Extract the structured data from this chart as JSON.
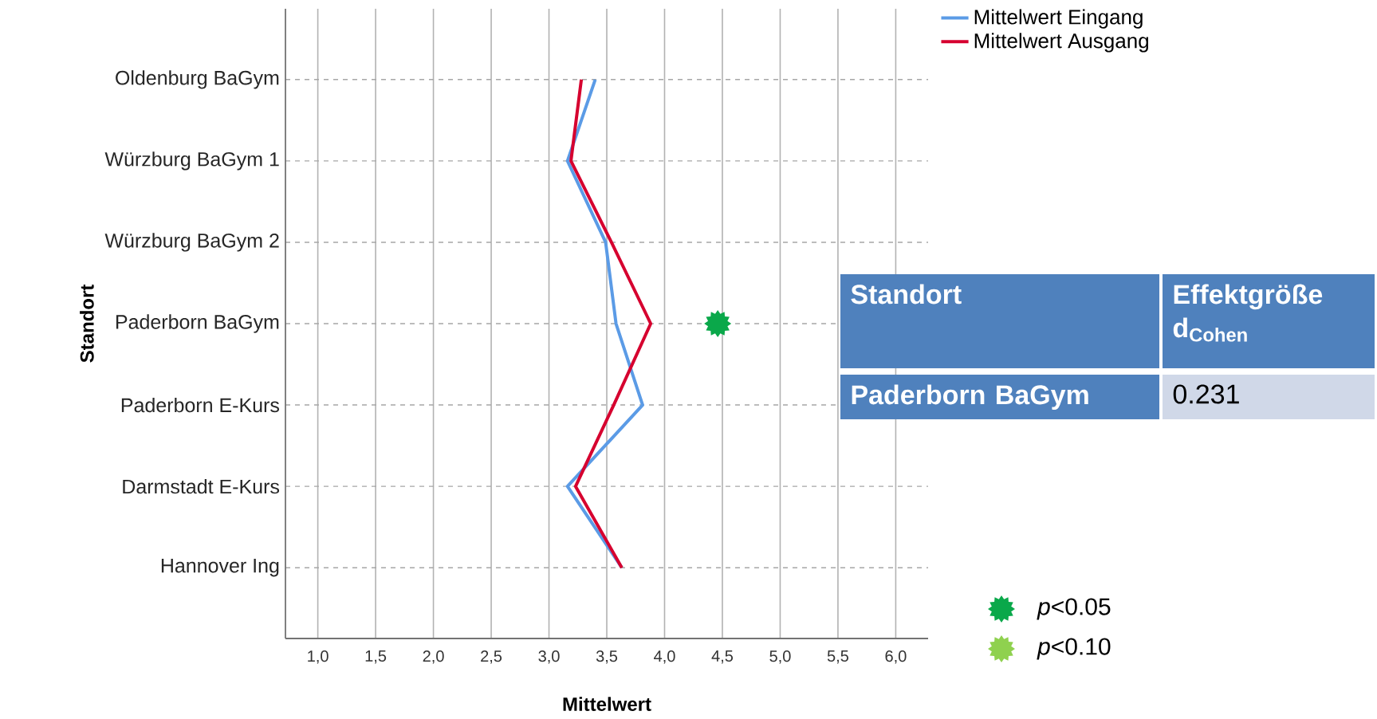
{
  "chart_data": {
    "type": "line",
    "orientation": "horizontal",
    "xlabel": "Mittelwert",
    "ylabel": "Standort",
    "categories": [
      "Oldenburg BaGym",
      "Würzburg BaGym 1",
      "Würzburg BaGym 2",
      "Paderborn BaGym",
      "Paderborn E-Kurs",
      "Darmstadt E-Kurs",
      "Hannover Ing"
    ],
    "series": [
      {
        "name": "Mittelwert Eingang",
        "color": "#5b9be6",
        "marker": "none",
        "values": [
          3.4,
          3.16,
          3.49,
          3.58,
          3.81,
          3.16,
          3.63
        ]
      },
      {
        "name": "Mittelwert Ausgang",
        "color": "#d6002f",
        "marker": "none",
        "values": [
          3.28,
          3.19,
          3.54,
          3.88,
          3.56,
          3.23,
          3.63
        ]
      },
      {
        "name": "*p*<0.05",
        "type": "scatter",
        "marker": "star",
        "color": "#0aa84a",
        "values": [
          null,
          null,
          null,
          4.46,
          null,
          null,
          null
        ]
      },
      {
        "name": "*p*<0.10",
        "type": "scatter",
        "marker": "star",
        "color": "#8fd14f",
        "values": [
          null,
          null,
          null,
          null,
          null,
          null,
          null
        ]
      }
    ],
    "xlim": [
      0.72,
      6.28
    ],
    "xticks": [
      {
        "value": 1,
        "label": "1,0"
      },
      {
        "value": 1.5,
        "label": "1,5"
      },
      {
        "value": 2,
        "label": "2,0"
      },
      {
        "value": 2.5,
        "label": "2,5"
      },
      {
        "value": 3,
        "label": "3,0"
      },
      {
        "value": 3.5,
        "label": "3,5"
      },
      {
        "value": 4,
        "label": "4,0"
      },
      {
        "value": 4.5,
        "label": "4,5"
      },
      {
        "value": 5,
        "label": "5,0"
      },
      {
        "value": 5.5,
        "label": "5,5"
      },
      {
        "value": 6,
        "label": "6,0"
      }
    ],
    "grid": true,
    "legend": "right",
    "annotations": [
      "Standort",
      "Effektgröße d$_{Cohen}$",
      "Paderborn BaGym",
      "0.231"
    ]
  }
}
